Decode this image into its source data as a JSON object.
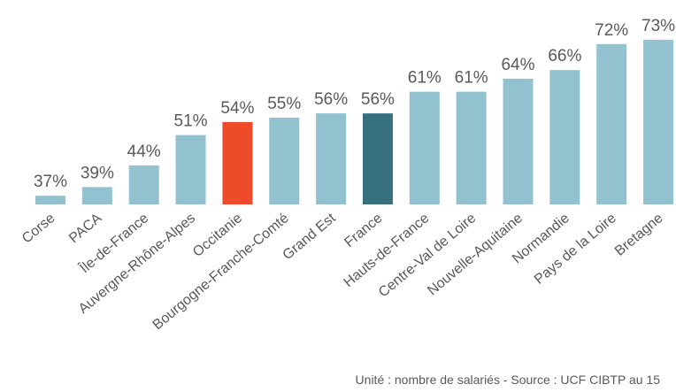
{
  "chart_data": {
    "type": "bar",
    "categories": [
      "Corse",
      "PACA",
      "Île-de-France",
      "Auvergne-Rhône-Alpes",
      "Occitanie",
      "Bourgogne-Franche-Comté",
      "Grand Est",
      "France",
      "Hauts-de-France",
      "Centre-Val de Loire",
      "Nouvelle-Aquitaine",
      "Normandie",
      "Pays de la Loire",
      "Bretagne"
    ],
    "values": [
      37,
      39,
      44,
      51,
      54,
      55,
      56,
      56,
      61,
      61,
      64,
      66,
      72,
      73
    ],
    "value_labels": [
      "37%",
      "39%",
      "44%",
      "51%",
      "54%",
      "55%",
      "56%",
      "56%",
      "61%",
      "61%",
      "64%",
      "66%",
      "72%",
      "73%"
    ],
    "colors": [
      "#92c1cf",
      "#92c1cf",
      "#92c1cf",
      "#92c1cf",
      "#ee4b2b",
      "#92c1cf",
      "#92c1cf",
      "#36707e",
      "#92c1cf",
      "#92c1cf",
      "#92c1cf",
      "#92c1cf",
      "#92c1cf",
      "#92c1cf"
    ],
    "ylim": [
      35,
      74
    ],
    "note": "Unité : nombre de salariés - Source : UCF CIBTP au 15"
  }
}
